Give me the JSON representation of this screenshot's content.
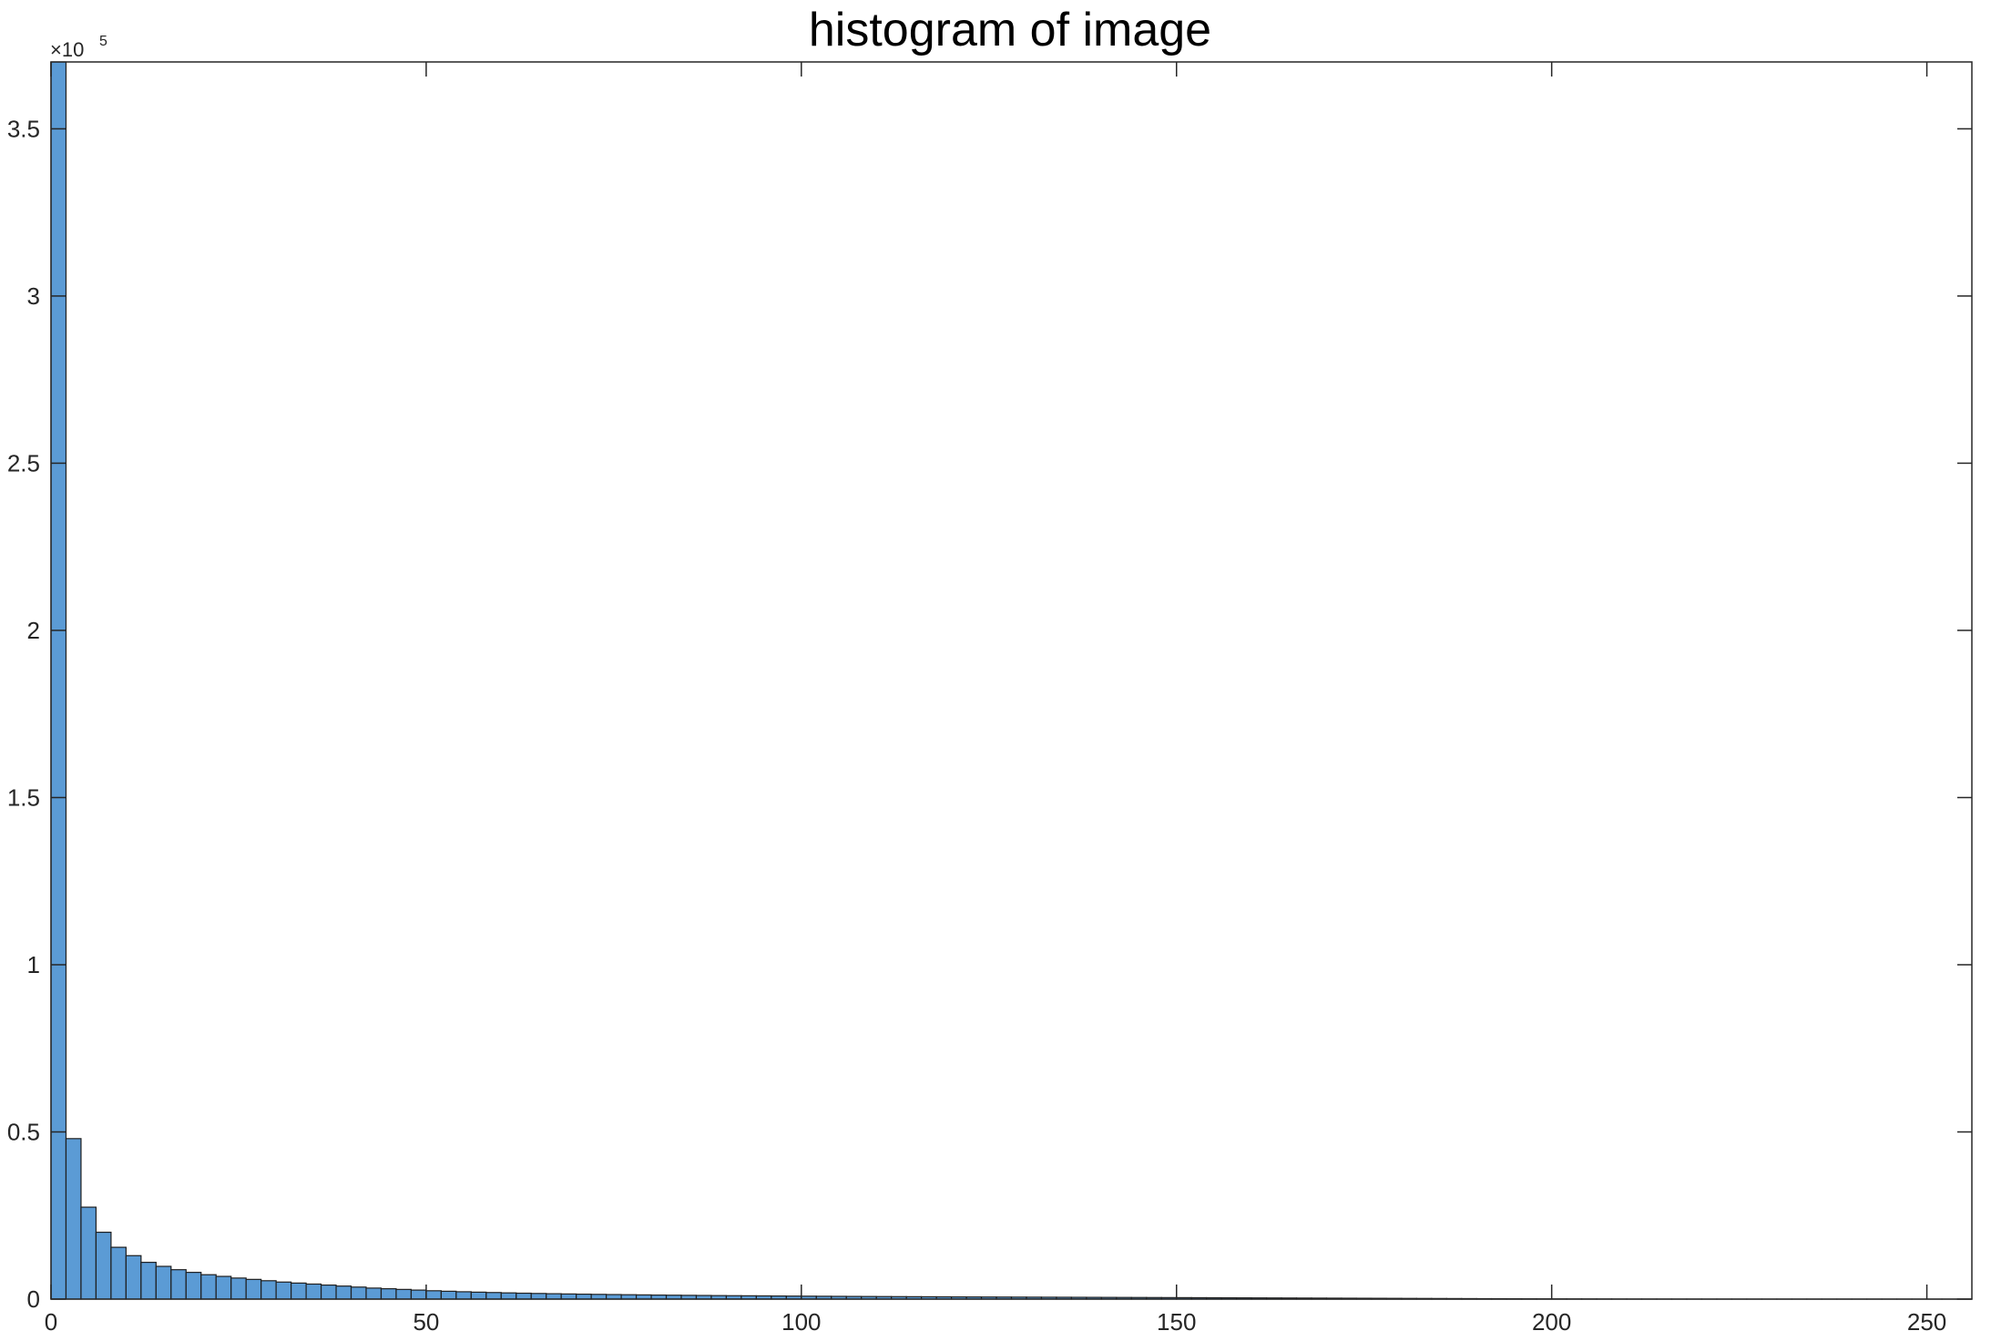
{
  "chart_data": {
    "type": "bar",
    "title": "histogram of image",
    "xlabel": "",
    "ylabel": "",
    "xlim": [
      0,
      256
    ],
    "ylim": [
      0,
      370000
    ],
    "xticks": [
      0,
      50,
      100,
      150,
      200,
      250
    ],
    "xtick_labels": [
      "0",
      "50",
      "100",
      "150",
      "200",
      "250"
    ],
    "yticks": [
      0,
      50000,
      100000,
      150000,
      200000,
      250000,
      300000,
      350000
    ],
    "ytick_labels": [
      "0",
      "0.5",
      "1",
      "1.5",
      "2",
      "2.5",
      "3",
      "3.5"
    ],
    "y_exponent": {
      "base": "×10",
      "power": "5"
    },
    "bin_width": 2,
    "bin_edges_start": 0,
    "values": [
      370000,
      48000,
      27500,
      20000,
      15500,
      13000,
      11000,
      9800,
      8800,
      8000,
      7300,
      6800,
      6300,
      5900,
      5500,
      5100,
      4800,
      4500,
      4200,
      3900,
      3600,
      3300,
      3100,
      2900,
      2700,
      2500,
      2350,
      2200,
      2080,
      1970,
      1860,
      1770,
      1690,
      1610,
      1540,
      1480,
      1420,
      1360,
      1310,
      1260,
      1210,
      1170,
      1130,
      1090,
      1050,
      1020,
      990,
      960,
      930,
      900,
      875,
      850,
      825,
      800,
      780,
      760,
      740,
      720,
      700,
      680,
      660,
      645,
      630,
      615,
      600,
      585,
      570,
      555,
      540,
      525,
      510,
      495,
      480,
      465,
      450,
      435,
      420,
      405,
      390,
      375,
      360,
      345,
      330,
      315,
      300,
      285,
      270,
      255,
      240,
      225,
      210,
      195,
      180,
      165,
      150,
      135,
      120,
      105,
      90,
      80,
      70,
      60,
      50,
      40,
      30,
      25,
      20,
      15,
      12,
      10,
      8,
      6,
      5,
      4,
      3,
      3,
      2,
      2,
      1,
      1,
      1,
      1,
      1,
      1,
      1,
      1,
      1,
      1
    ],
    "bar_color": "#5b9bd5",
    "bar_edge_color": "#1f1f1f",
    "grid": false,
    "box": true
  }
}
